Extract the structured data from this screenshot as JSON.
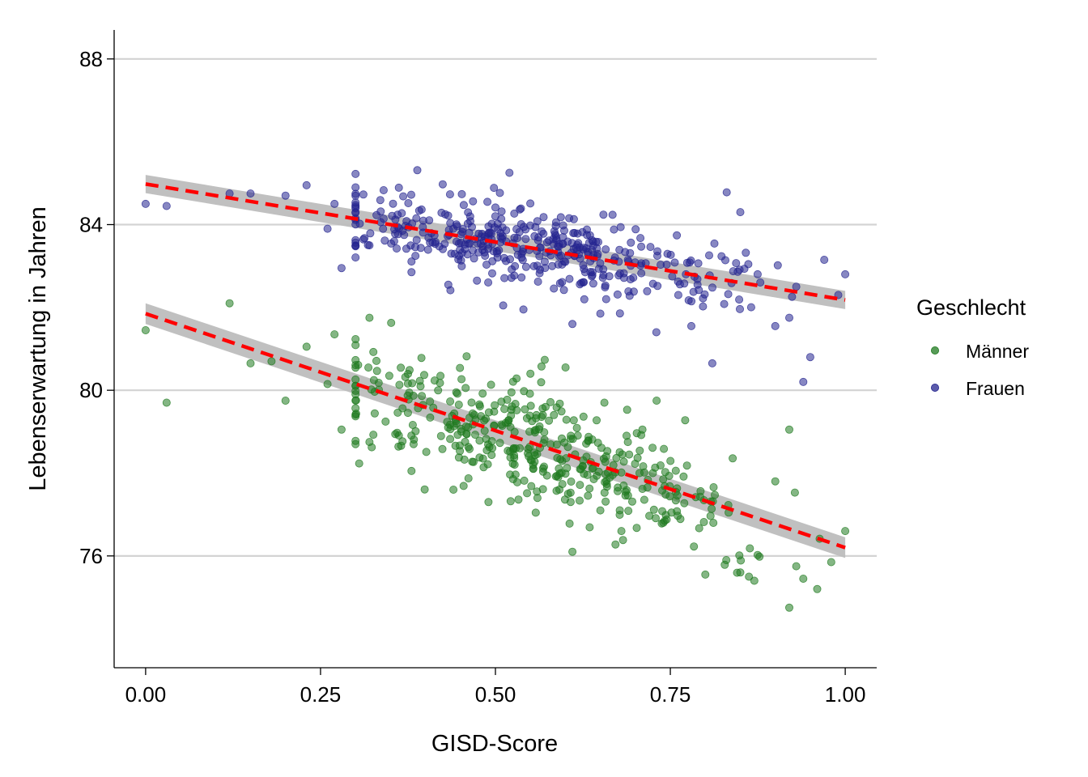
{
  "chart_data": {
    "type": "scatter",
    "title": "",
    "xlabel": "GISD-Score",
    "ylabel": "Lebenserwartung in Jahren",
    "xlim": [
      -0.045,
      1.045
    ],
    "ylim": [
      73.3,
      88.7
    ],
    "x_ticks": [
      0,
      0.25,
      0.5,
      0.75,
      1
    ],
    "x_tick_labels": [
      "0.00",
      "0.25",
      "0.50",
      "0.75",
      "1.00"
    ],
    "y_ticks": [
      76,
      80,
      84,
      88
    ],
    "y_tick_labels": [
      "76",
      "80",
      "84",
      "88"
    ],
    "grid": "horizontal major gridlines",
    "legend": {
      "title": "Geschlecht",
      "placement": "right",
      "entries": [
        "Männer",
        "Frauen"
      ]
    },
    "series": [
      {
        "name": "Männer",
        "color": "#1f7a1f",
        "point_opacity": 0.55,
        "fit": {
          "method": "linear",
          "intercept": 81.85,
          "slope": -5.65,
          "ci_halfwidth": 0.25,
          "line_color": "#ff0000",
          "line_style": "dashed",
          "band_color": "#bdbdbd"
        },
        "scatter": {
          "n": 420,
          "noise_sd": 0.72,
          "x_min": 0.0,
          "x_max": 1.0,
          "seed": 11
        },
        "points": [
          [
            0.0,
            81.45
          ],
          [
            0.03,
            79.7
          ],
          [
            0.12,
            82.1
          ],
          [
            0.15,
            80.65
          ],
          [
            0.18,
            80.7
          ],
          [
            0.2,
            79.75
          ],
          [
            0.23,
            81.05
          ],
          [
            0.26,
            80.15
          ],
          [
            0.27,
            81.35
          ],
          [
            0.28,
            79.05
          ],
          [
            0.3,
            78.7
          ],
          [
            0.32,
            78.75
          ],
          [
            0.38,
            78.05
          ],
          [
            0.44,
            77.6
          ],
          [
            0.49,
            77.3
          ],
          [
            0.55,
            80.4
          ],
          [
            0.56,
            77.4
          ],
          [
            0.61,
            76.1
          ],
          [
            0.65,
            77.1
          ],
          [
            0.68,
            76.6
          ],
          [
            0.74,
            76.8
          ],
          [
            0.8,
            75.55
          ],
          [
            0.83,
            75.9
          ],
          [
            0.85,
            75.6
          ],
          [
            0.87,
            75.4
          ],
          [
            0.9,
            77.8
          ],
          [
            0.92,
            74.75
          ],
          [
            0.93,
            75.75
          ],
          [
            0.94,
            75.45
          ],
          [
            0.96,
            75.2
          ],
          [
            0.98,
            75.85
          ],
          [
            1.0,
            76.6
          ],
          [
            0.92,
            79.05
          ]
        ]
      },
      {
        "name": "Frauen",
        "color": "#24248f",
        "point_opacity": 0.55,
        "fit": {
          "method": "linear",
          "intercept": 84.98,
          "slope": -2.8,
          "ci_halfwidth": 0.22,
          "line_color": "#ff0000",
          "line_style": "dashed",
          "band_color": "#bdbdbd"
        },
        "scatter": {
          "n": 420,
          "noise_sd": 0.5,
          "x_min": 0.0,
          "x_max": 1.0,
          "seed": 29
        },
        "points": [
          [
            0.0,
            84.5
          ],
          [
            0.03,
            84.45
          ],
          [
            0.12,
            84.75
          ],
          [
            0.15,
            84.75
          ],
          [
            0.2,
            84.7
          ],
          [
            0.23,
            84.95
          ],
          [
            0.26,
            83.9
          ],
          [
            0.27,
            84.5
          ],
          [
            0.28,
            82.95
          ],
          [
            0.32,
            83.5
          ],
          [
            0.38,
            82.85
          ],
          [
            0.52,
            85.25
          ],
          [
            0.54,
            81.95
          ],
          [
            0.61,
            81.6
          ],
          [
            0.65,
            81.85
          ],
          [
            0.73,
            81.4
          ],
          [
            0.78,
            81.55
          ],
          [
            0.81,
            80.65
          ],
          [
            0.85,
            84.3
          ],
          [
            0.9,
            81.55
          ],
          [
            0.92,
            81.75
          ],
          [
            0.94,
            80.2
          ],
          [
            0.95,
            80.8
          ],
          [
            0.97,
            83.15
          ],
          [
            0.99,
            82.3
          ],
          [
            1.0,
            82.8
          ],
          [
            0.93,
            82.5
          ]
        ]
      }
    ]
  }
}
